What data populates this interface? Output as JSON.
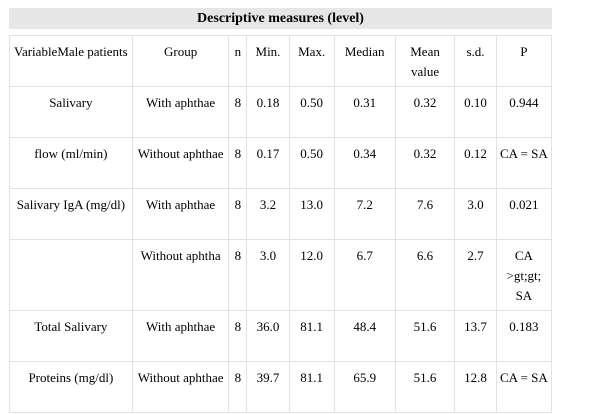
{
  "title": "Descriptive measures (level)",
  "headers": {
    "variable": "VariableMale patients",
    "group": "Group",
    "n": "n",
    "min": "Min.",
    "max": "Max.",
    "median": "Median",
    "mean": "Mean value",
    "sd": "s.d.",
    "p": "P"
  },
  "rows": [
    {
      "variable": "Salivary",
      "group": "With aphthae",
      "n": "8",
      "min": "0.18",
      "max": "0.50",
      "median": "0.31",
      "mean": "0.32",
      "sd": "0.10",
      "p": "0.944"
    },
    {
      "variable": "flow (ml/min)",
      "group": "Without aphthae",
      "n": "8",
      "min": "0.17",
      "max": "0.50",
      "median": "0.34",
      "mean": "0.32",
      "sd": "0.12",
      "p": "CA = SA"
    },
    {
      "variable": "Salivary IgA (mg/dl)",
      "group": "With aphthae",
      "n": "8",
      "min": "3.2",
      "max": "13.0",
      "median": "7.2",
      "mean": "7.6",
      "sd": "3.0",
      "p": "0.021"
    },
    {
      "variable": "",
      "group": "Without aphtha",
      "n": "8",
      "min": "3.0",
      "max": "12.0",
      "median": "6.7",
      "mean": "6.6",
      "sd": "2.7",
      "p": "CA >gt;gt; SA"
    },
    {
      "variable": "Total Salivary",
      "group": "With aphthae",
      "n": "8",
      "min": "36.0",
      "max": "81.1",
      "median": "48.4",
      "mean": "51.6",
      "sd": "13.7",
      "p": "0.183"
    },
    {
      "variable": "Proteins (mg/dl)",
      "group": "Without aphthae",
      "n": "8",
      "min": "39.7",
      "max": "81.1",
      "median": "65.9",
      "mean": "51.6",
      "sd": "12.8",
      "p": "CA = SA"
    }
  ]
}
